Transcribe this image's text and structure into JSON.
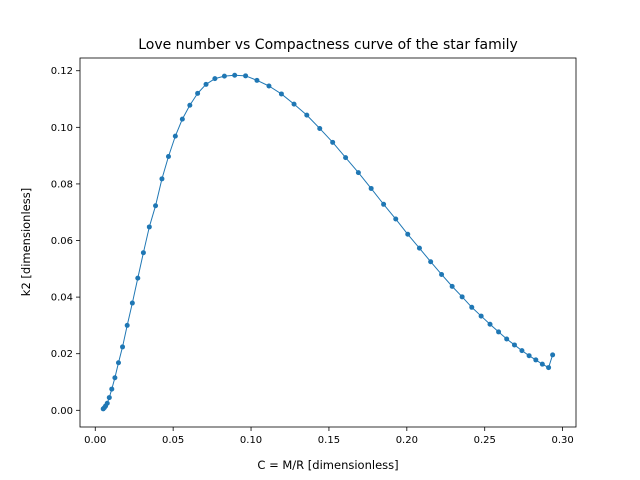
{
  "chart_data": {
    "type": "line",
    "title": "Love number vs Compactness curve of the star family",
    "xlabel": "C = M/R [dimensionless]",
    "ylabel": "k2 [dimensionless]",
    "xlim": [
      -0.0098,
      0.3086
    ],
    "ylim": [
      -0.0059,
      0.1245
    ],
    "x_ticks": [
      0.0,
      0.05,
      0.1,
      0.15,
      0.2,
      0.25,
      0.3
    ],
    "x_tick_labels": [
      "0.00",
      "0.05",
      "0.10",
      "0.15",
      "0.20",
      "0.25",
      "0.30"
    ],
    "y_ticks": [
      0.0,
      0.02,
      0.04,
      0.06,
      0.08,
      0.1,
      0.12
    ],
    "y_tick_labels": [
      "0.00",
      "0.02",
      "0.04",
      "0.06",
      "0.08",
      "0.10",
      "0.12"
    ],
    "grid": false,
    "legend": "none",
    "color": "#1f77b4",
    "series": [
      {
        "x": [
          0.0051,
          0.0058,
          0.0066,
          0.0077,
          0.009,
          0.0106,
          0.0126,
          0.0149,
          0.0175,
          0.0205,
          0.0238,
          0.0273,
          0.0309,
          0.0347,
          0.0387,
          0.0428,
          0.047,
          0.0514,
          0.0559,
          0.0607,
          0.0657,
          0.0711,
          0.0768,
          0.0829,
          0.0895,
          0.0965,
          0.1038,
          0.1115,
          0.1195,
          0.1276,
          0.1358,
          0.1441,
          0.1524,
          0.1607,
          0.1689,
          0.1771,
          0.1851,
          0.1929,
          0.2006,
          0.2081,
          0.2153,
          0.2223,
          0.2291,
          0.2355,
          0.2417,
          0.2477,
          0.2534,
          0.2589,
          0.2641,
          0.2691,
          0.2739,
          0.2785,
          0.2828,
          0.287,
          0.291,
          0.2936
        ],
        "y": [
          0.0005,
          0.0009,
          0.0015,
          0.0025,
          0.0045,
          0.0075,
          0.0115,
          0.0168,
          0.0224,
          0.03,
          0.0379,
          0.0467,
          0.0557,
          0.0648,
          0.0723,
          0.0818,
          0.0897,
          0.0969,
          0.1029,
          0.1078,
          0.112,
          0.1152,
          0.1172,
          0.1181,
          0.1184,
          0.1182,
          0.1166,
          0.1146,
          0.1118,
          0.1082,
          0.1043,
          0.0996,
          0.0947,
          0.0893,
          0.084,
          0.0784,
          0.0728,
          0.0676,
          0.0622,
          0.0573,
          0.0525,
          0.048,
          0.0438,
          0.0401,
          0.0364,
          0.0333,
          0.0304,
          0.0277,
          0.0252,
          0.0231,
          0.0211,
          0.0193,
          0.0178,
          0.0163,
          0.0151,
          0.0196
        ]
      }
    ]
  }
}
